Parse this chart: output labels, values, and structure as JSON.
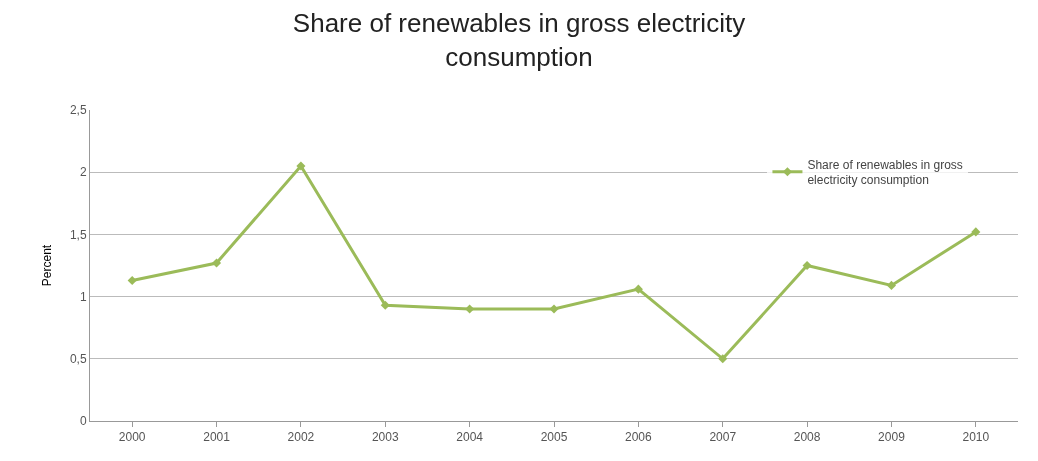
{
  "chart_data": {
    "type": "line",
    "title": "Share of renewables in gross electricity consumption",
    "ylabel": "Percent",
    "categories": [
      "2000",
      "2001",
      "2002",
      "2003",
      "2004",
      "2005",
      "2006",
      "2007",
      "2008",
      "2009",
      "2010"
    ],
    "series": [
      {
        "name": "Share of renewables in gross electricity consumption",
        "color": "#9bbb59",
        "values": [
          1.13,
          1.27,
          2.05,
          0.93,
          0.9,
          0.9,
          1.06,
          0.5,
          1.25,
          1.09,
          1.52
        ]
      }
    ],
    "ylim": [
      0,
      2.5
    ],
    "yticks": [
      0,
      {
        "value": 0.5,
        "label": "0,5"
      },
      1,
      {
        "value": 1.5,
        "label": "1,5"
      },
      2,
      {
        "value": 2.5,
        "label": "2,5"
      }
    ],
    "grid": "y",
    "legend": "right",
    "marker": "diamond",
    "line_style": "solid"
  }
}
